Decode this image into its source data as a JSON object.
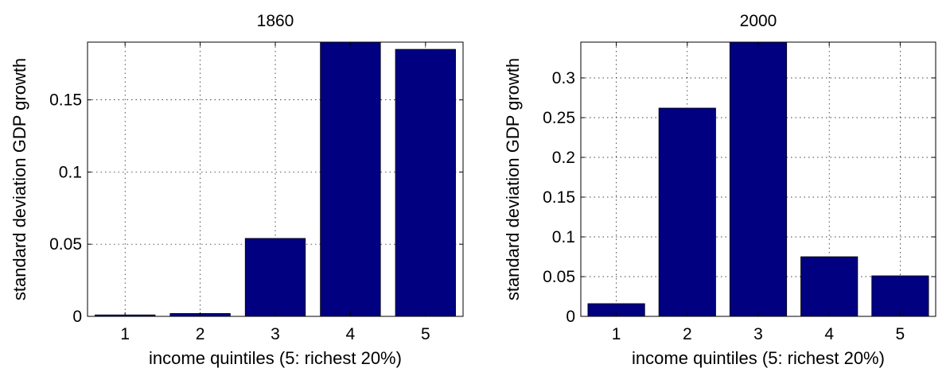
{
  "colors": {
    "bar": "#000080",
    "axes": "#000000",
    "grid": "#000000",
    "background": "#ffffff"
  },
  "chart_data": [
    {
      "type": "bar",
      "title": "1860",
      "xlabel": "income quintiles (5: richest 20%)",
      "ylabel": "standard deviation GDP growth",
      "categories": [
        "1",
        "2",
        "3",
        "4",
        "5"
      ],
      "values": [
        0.001,
        0.002,
        0.054,
        0.19,
        0.185
      ],
      "ylim": [
        0,
        0.19
      ],
      "yticks": [
        0,
        0.05,
        0.1,
        0.15
      ],
      "ytick_labels": [
        "0",
        "0.05",
        "0.1",
        "0.15"
      ],
      "grid": true
    },
    {
      "type": "bar",
      "title": "2000",
      "xlabel": "income quintiles (5: richest 20%)",
      "ylabel": "standard deviation GDP growth",
      "categories": [
        "1",
        "2",
        "3",
        "4",
        "5"
      ],
      "values": [
        0.016,
        0.262,
        0.345,
        0.075,
        0.051
      ],
      "ylim": [
        0,
        0.345
      ],
      "yticks": [
        0,
        0.05,
        0.1,
        0.15,
        0.2,
        0.25,
        0.3
      ],
      "ytick_labels": [
        "0",
        "0.05",
        "0.1",
        "0.15",
        "0.2",
        "0.25",
        "0.3"
      ],
      "grid": true
    }
  ]
}
